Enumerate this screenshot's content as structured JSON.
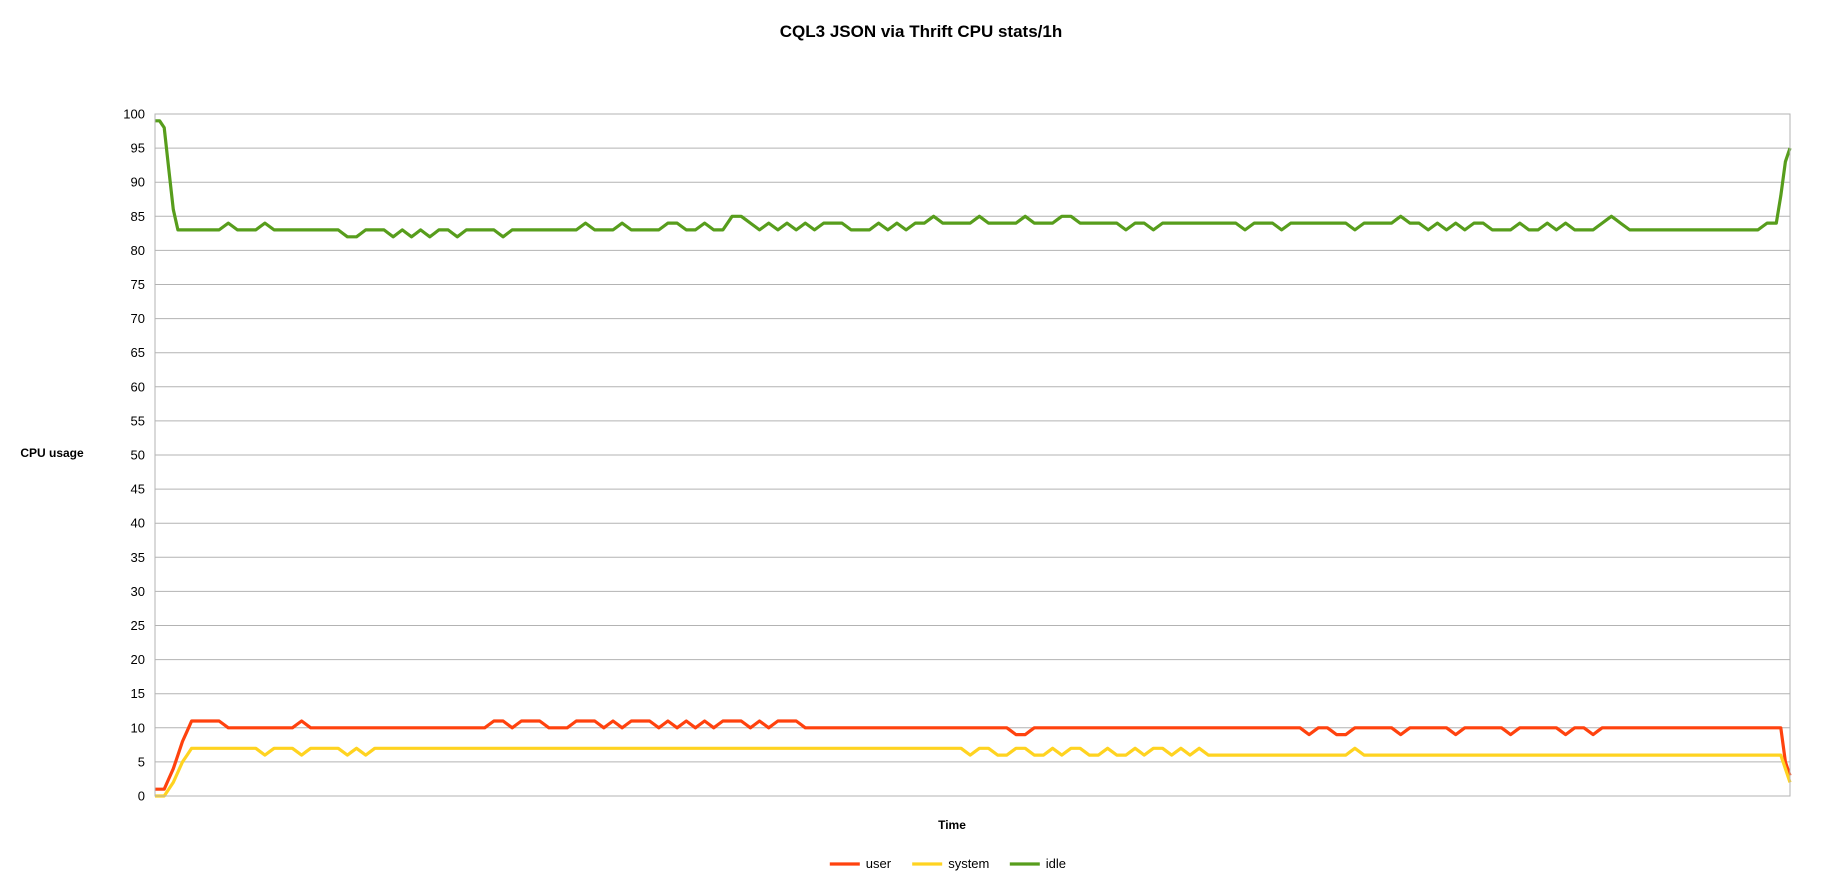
{
  "chart_data": {
    "type": "line",
    "title": "CQL3 JSON via Thrift CPU stats/1h",
    "xlabel": "Time",
    "ylabel": "CPU usage",
    "ylim": [
      0,
      100
    ],
    "ytick_step": 5,
    "yticks": [
      "0",
      "5",
      "10",
      "15",
      "20",
      "25",
      "30",
      "35",
      "40",
      "45",
      "50",
      "55",
      "60",
      "65",
      "70",
      "75",
      "80",
      "85",
      "90",
      "95",
      "100"
    ],
    "grid": true,
    "legend_position": "bottom",
    "x_count": 358,
    "series": [
      {
        "name": "user",
        "color": "#ff420e",
        "keypoints": [
          [
            0,
            1
          ],
          [
            2,
            1
          ],
          [
            4,
            4
          ],
          [
            6,
            8
          ],
          [
            8,
            11
          ],
          [
            12,
            11
          ],
          [
            14,
            11
          ],
          [
            16,
            10
          ],
          [
            20,
            10
          ],
          [
            24,
            10
          ],
          [
            28,
            10
          ],
          [
            30,
            10
          ],
          [
            32,
            11
          ],
          [
            34,
            10
          ],
          [
            40,
            10
          ],
          [
            50,
            10
          ],
          [
            60,
            10
          ],
          [
            70,
            10
          ],
          [
            72,
            10
          ],
          [
            74,
            11
          ],
          [
            76,
            11
          ],
          [
            78,
            10
          ],
          [
            80,
            11
          ],
          [
            82,
            11
          ],
          [
            84,
            11
          ],
          [
            86,
            10
          ],
          [
            88,
            10
          ],
          [
            90,
            10
          ],
          [
            92,
            11
          ],
          [
            94,
            11
          ],
          [
            96,
            11
          ],
          [
            98,
            10
          ],
          [
            100,
            11
          ],
          [
            102,
            10
          ],
          [
            104,
            11
          ],
          [
            106,
            11
          ],
          [
            108,
            11
          ],
          [
            110,
            10
          ],
          [
            112,
            11
          ],
          [
            114,
            10
          ],
          [
            116,
            11
          ],
          [
            118,
            10
          ],
          [
            120,
            11
          ],
          [
            122,
            10
          ],
          [
            124,
            11
          ],
          [
            126,
            11
          ],
          [
            128,
            11
          ],
          [
            130,
            10
          ],
          [
            132,
            11
          ],
          [
            134,
            10
          ],
          [
            136,
            11
          ],
          [
            138,
            11
          ],
          [
            140,
            11
          ],
          [
            142,
            10
          ],
          [
            150,
            10
          ],
          [
            160,
            10
          ],
          [
            170,
            10
          ],
          [
            180,
            10
          ],
          [
            186,
            10
          ],
          [
            188,
            9
          ],
          [
            190,
            9
          ],
          [
            192,
            10
          ],
          [
            200,
            10
          ],
          [
            210,
            10
          ],
          [
            220,
            10
          ],
          [
            230,
            10
          ],
          [
            240,
            10
          ],
          [
            250,
            10
          ],
          [
            252,
            9
          ],
          [
            254,
            10
          ],
          [
            256,
            10
          ],
          [
            258,
            9
          ],
          [
            260,
            9
          ],
          [
            262,
            10
          ],
          [
            270,
            10
          ],
          [
            272,
            9
          ],
          [
            274,
            10
          ],
          [
            278,
            10
          ],
          [
            282,
            10
          ],
          [
            284,
            9
          ],
          [
            286,
            10
          ],
          [
            292,
            10
          ],
          [
            294,
            10
          ],
          [
            296,
            9
          ],
          [
            298,
            10
          ],
          [
            302,
            10
          ],
          [
            306,
            10
          ],
          [
            308,
            9
          ],
          [
            310,
            10
          ],
          [
            312,
            10
          ],
          [
            314,
            9
          ],
          [
            316,
            10
          ],
          [
            320,
            10
          ],
          [
            330,
            10
          ],
          [
            340,
            10
          ],
          [
            350,
            10
          ],
          [
            355,
            10
          ],
          [
            356,
            5
          ],
          [
            357,
            3
          ]
        ]
      },
      {
        "name": "system",
        "color": "#ffd320",
        "keypoints": [
          [
            0,
            0
          ],
          [
            2,
            0
          ],
          [
            4,
            2
          ],
          [
            6,
            5
          ],
          [
            8,
            7
          ],
          [
            12,
            7
          ],
          [
            20,
            7
          ],
          [
            22,
            7
          ],
          [
            24,
            6
          ],
          [
            26,
            7
          ],
          [
            30,
            7
          ],
          [
            32,
            6
          ],
          [
            34,
            7
          ],
          [
            38,
            7
          ],
          [
            40,
            7
          ],
          [
            42,
            6
          ],
          [
            44,
            7
          ],
          [
            46,
            6
          ],
          [
            48,
            7
          ],
          [
            60,
            7
          ],
          [
            70,
            7
          ],
          [
            80,
            7
          ],
          [
            90,
            7
          ],
          [
            100,
            7
          ],
          [
            110,
            7
          ],
          [
            120,
            7
          ],
          [
            130,
            7
          ],
          [
            140,
            7
          ],
          [
            150,
            7
          ],
          [
            160,
            7
          ],
          [
            170,
            7
          ],
          [
            176,
            7
          ],
          [
            178,
            6
          ],
          [
            180,
            7
          ],
          [
            182,
            7
          ],
          [
            184,
            6
          ],
          [
            186,
            6
          ],
          [
            188,
            7
          ],
          [
            190,
            7
          ],
          [
            192,
            6
          ],
          [
            194,
            6
          ],
          [
            196,
            7
          ],
          [
            198,
            6
          ],
          [
            200,
            7
          ],
          [
            202,
            7
          ],
          [
            204,
            6
          ],
          [
            206,
            6
          ],
          [
            208,
            7
          ],
          [
            210,
            6
          ],
          [
            212,
            6
          ],
          [
            214,
            7
          ],
          [
            216,
            6
          ],
          [
            218,
            7
          ],
          [
            220,
            7
          ],
          [
            222,
            6
          ],
          [
            224,
            7
          ],
          [
            226,
            6
          ],
          [
            228,
            7
          ],
          [
            230,
            6
          ],
          [
            232,
            6
          ],
          [
            240,
            6
          ],
          [
            250,
            6
          ],
          [
            260,
            6
          ],
          [
            262,
            7
          ],
          [
            264,
            6
          ],
          [
            270,
            6
          ],
          [
            280,
            6
          ],
          [
            290,
            6
          ],
          [
            300,
            6
          ],
          [
            310,
            6
          ],
          [
            320,
            6
          ],
          [
            330,
            6
          ],
          [
            340,
            6
          ],
          [
            350,
            6
          ],
          [
            355,
            6
          ],
          [
            356,
            4
          ],
          [
            357,
            2
          ]
        ]
      },
      {
        "name": "idle",
        "color": "#579d1c",
        "keypoints": [
          [
            0,
            99
          ],
          [
            1,
            99
          ],
          [
            2,
            98
          ],
          [
            3,
            92
          ],
          [
            4,
            86
          ],
          [
            5,
            83
          ],
          [
            10,
            83
          ],
          [
            14,
            83
          ],
          [
            16,
            84
          ],
          [
            18,
            83
          ],
          [
            22,
            83
          ],
          [
            24,
            84
          ],
          [
            26,
            83
          ],
          [
            32,
            83
          ],
          [
            40,
            83
          ],
          [
            42,
            82
          ],
          [
            44,
            82
          ],
          [
            46,
            83
          ],
          [
            50,
            83
          ],
          [
            52,
            82
          ],
          [
            54,
            83
          ],
          [
            56,
            82
          ],
          [
            58,
            83
          ],
          [
            60,
            82
          ],
          [
            62,
            83
          ],
          [
            64,
            83
          ],
          [
            66,
            82
          ],
          [
            68,
            83
          ],
          [
            74,
            83
          ],
          [
            76,
            82
          ],
          [
            78,
            83
          ],
          [
            84,
            83
          ],
          [
            92,
            83
          ],
          [
            94,
            84
          ],
          [
            96,
            83
          ],
          [
            100,
            83
          ],
          [
            102,
            84
          ],
          [
            104,
            83
          ],
          [
            110,
            83
          ],
          [
            112,
            84
          ],
          [
            114,
            84
          ],
          [
            116,
            83
          ],
          [
            118,
            83
          ],
          [
            120,
            84
          ],
          [
            122,
            83
          ],
          [
            124,
            83
          ],
          [
            126,
            85
          ],
          [
            128,
            85
          ],
          [
            130,
            84
          ],
          [
            132,
            83
          ],
          [
            134,
            84
          ],
          [
            136,
            83
          ],
          [
            138,
            84
          ],
          [
            140,
            83
          ],
          [
            142,
            84
          ],
          [
            144,
            83
          ],
          [
            146,
            84
          ],
          [
            148,
            84
          ],
          [
            150,
            84
          ],
          [
            152,
            83
          ],
          [
            156,
            83
          ],
          [
            158,
            84
          ],
          [
            160,
            83
          ],
          [
            162,
            84
          ],
          [
            164,
            83
          ],
          [
            166,
            84
          ],
          [
            168,
            84
          ],
          [
            170,
            85
          ],
          [
            172,
            84
          ],
          [
            178,
            84
          ],
          [
            180,
            85
          ],
          [
            182,
            84
          ],
          [
            188,
            84
          ],
          [
            190,
            85
          ],
          [
            192,
            84
          ],
          [
            196,
            84
          ],
          [
            198,
            85
          ],
          [
            200,
            85
          ],
          [
            202,
            84
          ],
          [
            210,
            84
          ],
          [
            212,
            83
          ],
          [
            214,
            84
          ],
          [
            216,
            84
          ],
          [
            218,
            83
          ],
          [
            220,
            84
          ],
          [
            230,
            84
          ],
          [
            236,
            84
          ],
          [
            238,
            83
          ],
          [
            240,
            84
          ],
          [
            244,
            84
          ],
          [
            246,
            83
          ],
          [
            248,
            84
          ],
          [
            254,
            84
          ],
          [
            260,
            84
          ],
          [
            262,
            83
          ],
          [
            264,
            84
          ],
          [
            270,
            84
          ],
          [
            272,
            85
          ],
          [
            274,
            84
          ],
          [
            276,
            84
          ],
          [
            278,
            83
          ],
          [
            280,
            84
          ],
          [
            282,
            83
          ],
          [
            284,
            84
          ],
          [
            286,
            83
          ],
          [
            288,
            84
          ],
          [
            290,
            84
          ],
          [
            292,
            83
          ],
          [
            296,
            83
          ],
          [
            298,
            84
          ],
          [
            300,
            83
          ],
          [
            302,
            83
          ],
          [
            304,
            84
          ],
          [
            306,
            83
          ],
          [
            308,
            84
          ],
          [
            310,
            83
          ],
          [
            314,
            83
          ],
          [
            316,
            84
          ],
          [
            318,
            85
          ],
          [
            320,
            84
          ],
          [
            322,
            83
          ],
          [
            330,
            83
          ],
          [
            340,
            83
          ],
          [
            350,
            83
          ],
          [
            352,
            84
          ],
          [
            354,
            84
          ],
          [
            355,
            88
          ],
          [
            356,
            93
          ],
          [
            357,
            95
          ]
        ]
      }
    ]
  }
}
